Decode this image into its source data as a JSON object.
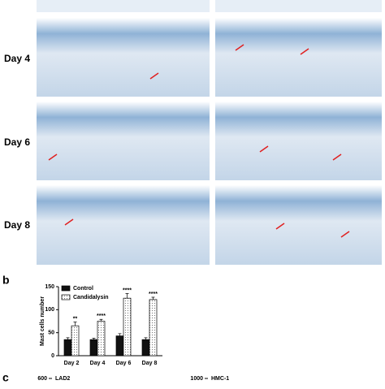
{
  "row_labels": [
    "Day 4",
    "Day 6",
    "Day 8"
  ],
  "panel_labels": [
    "b",
    "c"
  ],
  "chart_data": {
    "type": "bar",
    "ylabel": "Mast cells number",
    "categories": [
      "Day 2",
      "Day 4",
      "Day 6",
      "Day 8"
    ],
    "series": [
      {
        "name": "Control",
        "color": "#111111",
        "values": [
          35,
          35,
          43,
          35
        ],
        "errors": [
          4,
          3,
          5,
          4
        ]
      },
      {
        "name": "Candidalysin",
        "color": "#ffffff",
        "values": [
          65,
          75,
          125,
          122
        ],
        "errors": [
          8,
          4,
          10,
          5
        ]
      }
    ],
    "significance": [
      "**",
      "****",
      "****",
      "****"
    ],
    "ylim": [
      0,
      150
    ],
    "yticks": [
      0,
      50,
      100,
      150
    ]
  },
  "panel_c": {
    "left_tick": 600,
    "left_title": "LAD2",
    "right_tick": 1000,
    "right_title": "HMC-1"
  }
}
